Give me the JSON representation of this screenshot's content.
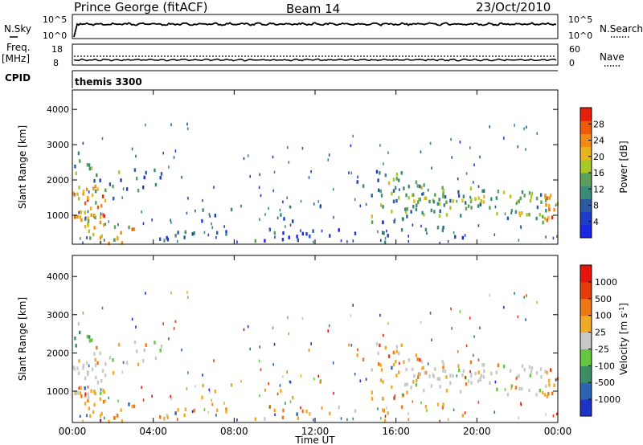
{
  "header": {
    "station": "Prince George (fitACF)",
    "beam": "Beam 14",
    "date": "23/Oct/2010"
  },
  "aux_panels": {
    "nsky_label": "N.Sky",
    "nsearch_label": "N.Search",
    "freq_label_1": "Freq.",
    "freq_label_2": "[MHz]",
    "nave_label": "Nave",
    "cpid_label": "CPID",
    "cpid_value": "themis 3300",
    "noise_ticks": [
      "10^5",
      "10^0"
    ],
    "freq_ticks": [
      "18",
      "8"
    ],
    "nave_ticks": [
      "60",
      "0"
    ]
  },
  "chart_data": [
    {
      "type": "heatmap",
      "name": "power",
      "ylabel": "Slant Range [km]",
      "xlabel": "",
      "xlim": [
        0,
        24
      ],
      "ylim": [
        180,
        4550
      ],
      "yticks": [
        1000,
        2000,
        3000,
        4000
      ],
      "colorbar": {
        "label": "Power [dB]",
        "range": [
          0,
          32
        ],
        "ticks": [
          4,
          8,
          12,
          16,
          20,
          24,
          28
        ],
        "colors": [
          "#1a28e6",
          "#1e3cc8",
          "#2a5aa0",
          "#3a8c78",
          "#5aa05a",
          "#a8c828",
          "#e6b41e",
          "#f08c14",
          "#ee5a0a",
          "#e61e0a"
        ]
      }
    },
    {
      "type": "heatmap",
      "name": "velocity",
      "ylabel": "Slant Range [km]",
      "xlabel": "Time UT",
      "xlim": [
        0,
        24
      ],
      "ylim": [
        180,
        4550
      ],
      "yticks": [
        1000,
        2000,
        3000,
        4000
      ],
      "xticks": [
        "00:00",
        "04:00",
        "08:00",
        "12:00",
        "16:00",
        "20:00",
        "00:00"
      ],
      "colorbar": {
        "label": "Velocity [m s^-1]",
        "ticks": [
          "1000",
          "500",
          "100",
          "25",
          "-25",
          "-100",
          "-500",
          "-1000"
        ],
        "colors": [
          "#1e32c8",
          "#2a64b4",
          "#3c8c64",
          "#64c83c",
          "#c8c8c8",
          "#f0aa28",
          "#f07814",
          "#e63c0a",
          "#e6140a"
        ]
      }
    }
  ]
}
